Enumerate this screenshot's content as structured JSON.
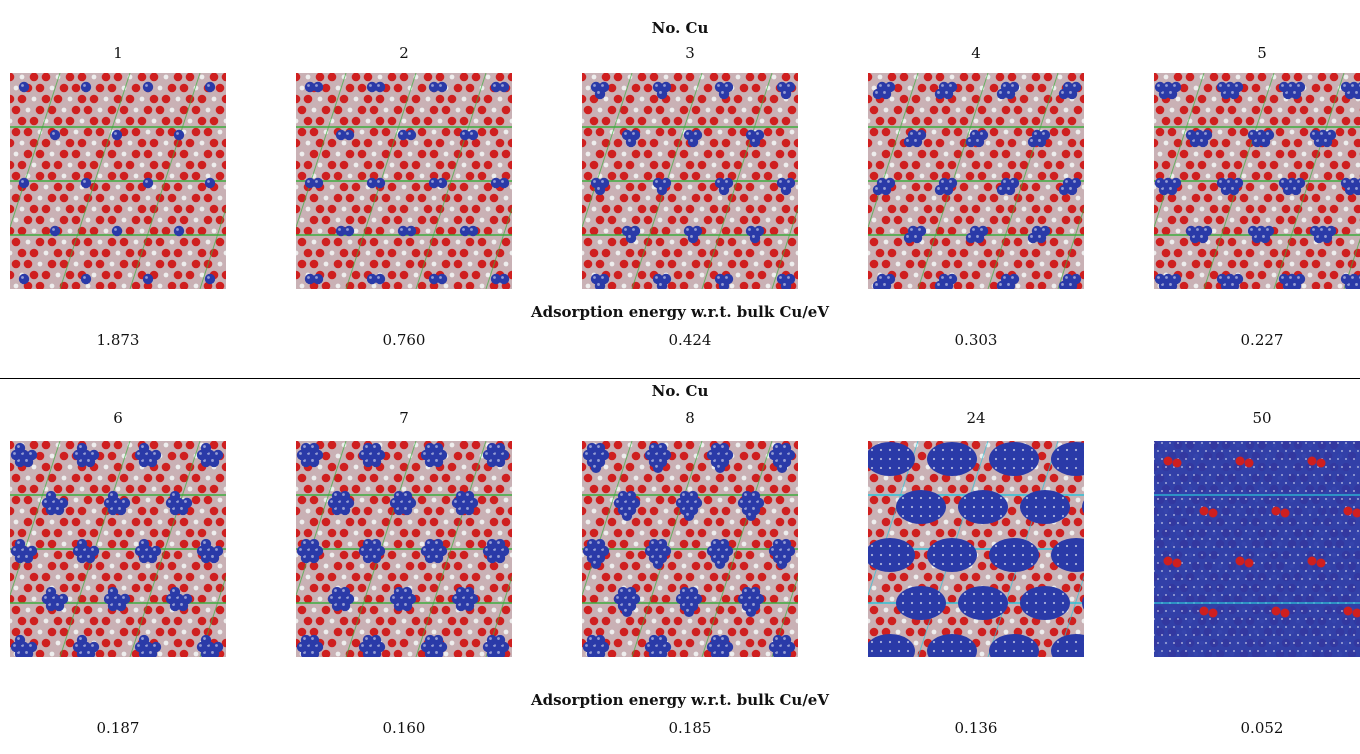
{
  "colors": {
    "oxygen": "#cf1f1f",
    "cell_background": "#c9b1b5",
    "hydrogen": "#eeeeee",
    "copper": "#2a3aa8",
    "cell_line_green": "#3fae3f",
    "cell_line_cyan": "#2fc3d6"
  },
  "rows": [
    {
      "header": "No. Cu",
      "energy_header": "Adsorption energy w.r.t. bulk Cu/eV",
      "panels": [
        {
          "count": "1",
          "energy": "1.873",
          "cluster_atoms": 1
        },
        {
          "count": "2",
          "energy": "0.760",
          "cluster_atoms": 2
        },
        {
          "count": "3",
          "energy": "0.424",
          "cluster_atoms": 3
        },
        {
          "count": "4",
          "energy": "0.303",
          "cluster_atoms": 4
        },
        {
          "count": "5",
          "energy": "0.227",
          "cluster_atoms": 5
        }
      ]
    },
    {
      "header": "No. Cu",
      "energy_header": "Adsorption energy w.r.t. bulk Cu/eV",
      "panels": [
        {
          "count": "6",
          "energy": "0.187",
          "cluster_atoms": 6
        },
        {
          "count": "7",
          "energy": "0.160",
          "cluster_atoms": 7
        },
        {
          "count": "8",
          "energy": "0.185",
          "cluster_atoms": 8
        },
        {
          "count": "24",
          "energy": "0.136",
          "cluster_atoms": 24
        },
        {
          "count": "50",
          "energy": "0.052",
          "cluster_atoms": 50
        }
      ]
    }
  ]
}
